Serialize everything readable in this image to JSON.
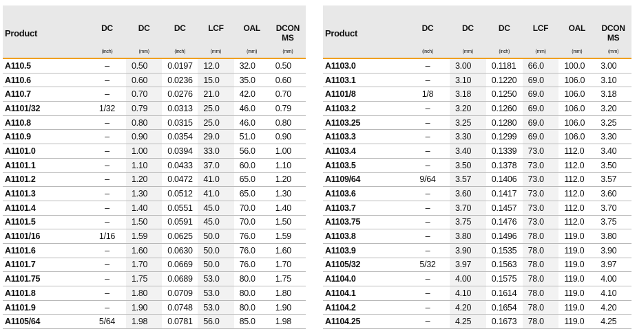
{
  "columns": [
    {
      "label": "Product",
      "unit": ""
    },
    {
      "label": "DC",
      "unit": "(inch)"
    },
    {
      "label": "DC",
      "unit": "(mm)"
    },
    {
      "label": "DC",
      "unit": "(inch)"
    },
    {
      "label": "LCF",
      "unit": "(mm)"
    },
    {
      "label": "OAL",
      "unit": "(mm)"
    },
    {
      "label": "DCON MS",
      "unit": "(mm)"
    }
  ],
  "left_rows": [
    [
      "A110.5",
      "–",
      "0.50",
      "0.0197",
      "12.0",
      "32.0",
      "0.50"
    ],
    [
      "A110.6",
      "–",
      "0.60",
      "0.0236",
      "15.0",
      "35.0",
      "0.60"
    ],
    [
      "A110.7",
      "–",
      "0.70",
      "0.0276",
      "21.0",
      "42.0",
      "0.70"
    ],
    [
      "A1101/32",
      "1/32",
      "0.79",
      "0.0313",
      "25.0",
      "46.0",
      "0.79"
    ],
    [
      "A110.8",
      "–",
      "0.80",
      "0.0315",
      "25.0",
      "46.0",
      "0.80"
    ],
    [
      "A110.9",
      "–",
      "0.90",
      "0.0354",
      "29.0",
      "51.0",
      "0.90"
    ],
    [
      "A1101.0",
      "–",
      "1.00",
      "0.0394",
      "33.0",
      "56.0",
      "1.00"
    ],
    [
      "A1101.1",
      "–",
      "1.10",
      "0.0433",
      "37.0",
      "60.0",
      "1.10"
    ],
    [
      "A1101.2",
      "–",
      "1.20",
      "0.0472",
      "41.0",
      "65.0",
      "1.20"
    ],
    [
      "A1101.3",
      "–",
      "1.30",
      "0.0512",
      "41.0",
      "65.0",
      "1.30"
    ],
    [
      "A1101.4",
      "–",
      "1.40",
      "0.0551",
      "45.0",
      "70.0",
      "1.40"
    ],
    [
      "A1101.5",
      "–",
      "1.50",
      "0.0591",
      "45.0",
      "70.0",
      "1.50"
    ],
    [
      "A1101/16",
      "1/16",
      "1.59",
      "0.0625",
      "50.0",
      "76.0",
      "1.59"
    ],
    [
      "A1101.6",
      "–",
      "1.60",
      "0.0630",
      "50.0",
      "76.0",
      "1.60"
    ],
    [
      "A1101.7",
      "–",
      "1.70",
      "0.0669",
      "50.0",
      "76.0",
      "1.70"
    ],
    [
      "A1101.75",
      "–",
      "1.75",
      "0.0689",
      "53.0",
      "80.0",
      "1.75"
    ],
    [
      "A1101.8",
      "–",
      "1.80",
      "0.0709",
      "53.0",
      "80.0",
      "1.80"
    ],
    [
      "A1101.9",
      "–",
      "1.90",
      "0.0748",
      "53.0",
      "80.0",
      "1.90"
    ],
    [
      "A1105/64",
      "5/64",
      "1.98",
      "0.0781",
      "56.0",
      "85.0",
      "1.98"
    ]
  ],
  "right_rows": [
    [
      "A1103.0",
      "–",
      "3.00",
      "0.1181",
      "66.0",
      "100.0",
      "3.00"
    ],
    [
      "A1103.1",
      "–",
      "3.10",
      "0.1220",
      "69.0",
      "106.0",
      "3.10"
    ],
    [
      "A1101/8",
      "1/8",
      "3.18",
      "0.1250",
      "69.0",
      "106.0",
      "3.18"
    ],
    [
      "A1103.2",
      "–",
      "3.20",
      "0.1260",
      "69.0",
      "106.0",
      "3.20"
    ],
    [
      "A1103.25",
      "–",
      "3.25",
      "0.1280",
      "69.0",
      "106.0",
      "3.25"
    ],
    [
      "A1103.3",
      "–",
      "3.30",
      "0.1299",
      "69.0",
      "106.0",
      "3.30"
    ],
    [
      "A1103.4",
      "–",
      "3.40",
      "0.1339",
      "73.0",
      "112.0",
      "3.40"
    ],
    [
      "A1103.5",
      "–",
      "3.50",
      "0.1378",
      "73.0",
      "112.0",
      "3.50"
    ],
    [
      "A1109/64",
      "9/64",
      "3.57",
      "0.1406",
      "73.0",
      "112.0",
      "3.57"
    ],
    [
      "A1103.6",
      "–",
      "3.60",
      "0.1417",
      "73.0",
      "112.0",
      "3.60"
    ],
    [
      "A1103.7",
      "–",
      "3.70",
      "0.1457",
      "73.0",
      "112.0",
      "3.70"
    ],
    [
      "A1103.75",
      "–",
      "3.75",
      "0.1476",
      "73.0",
      "112.0",
      "3.75"
    ],
    [
      "A1103.8",
      "–",
      "3.80",
      "0.1496",
      "78.0",
      "119.0",
      "3.80"
    ],
    [
      "A1103.9",
      "–",
      "3.90",
      "0.1535",
      "78.0",
      "119.0",
      "3.90"
    ],
    [
      "A1105/32",
      "5/32",
      "3.97",
      "0.1563",
      "78.0",
      "119.0",
      "3.97"
    ],
    [
      "A1104.0",
      "–",
      "4.00",
      "0.1575",
      "78.0",
      "119.0",
      "4.00"
    ],
    [
      "A1104.1",
      "–",
      "4.10",
      "0.1614",
      "78.0",
      "119.0",
      "4.10"
    ],
    [
      "A1104.2",
      "–",
      "4.20",
      "0.1654",
      "78.0",
      "119.0",
      "4.20"
    ],
    [
      "A1104.25",
      "–",
      "4.25",
      "0.1673",
      "78.0",
      "119.0",
      "4.25"
    ]
  ]
}
